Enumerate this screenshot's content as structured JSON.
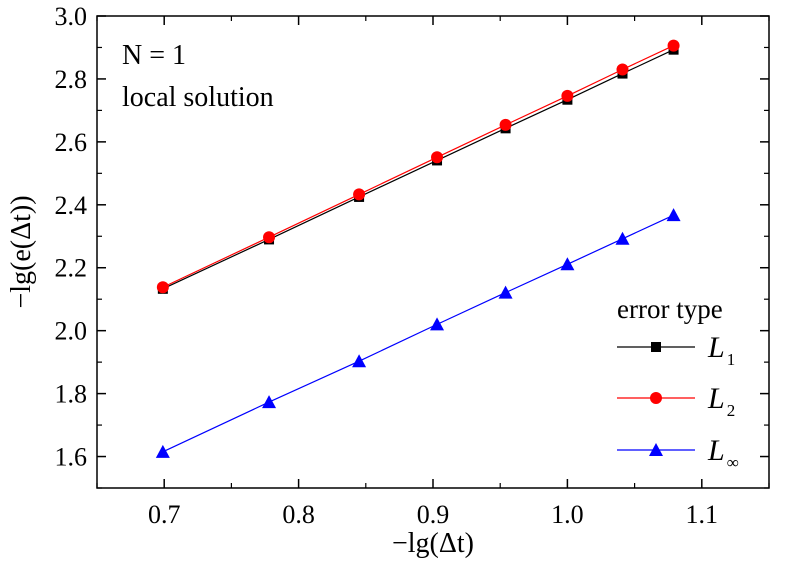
{
  "chart_data": {
    "type": "line",
    "xlabel": "−lg(Δt)",
    "ylabel": "−lg(e(Δt))",
    "xlim": [
      0.65,
      1.15
    ],
    "ylim": [
      1.5,
      3.0
    ],
    "xticks": [
      0.7,
      0.8,
      0.9,
      1.0,
      1.1
    ],
    "yticks": [
      1.6,
      1.8,
      2.0,
      2.2,
      2.4,
      2.6,
      2.8,
      3.0
    ],
    "xtick_labels": [
      "0.7",
      "0.8",
      "0.9",
      "1.0",
      "1.1"
    ],
    "ytick_labels": [
      "1.6",
      "1.8",
      "2.0",
      "2.2",
      "2.4",
      "2.6",
      "2.8",
      "3.0"
    ],
    "grid": false,
    "annotations": [
      "N = 1",
      "local solution"
    ],
    "legend": {
      "title": "error type",
      "placement": "bottom-right"
    },
    "x": [
      0.699,
      0.778,
      0.845,
      0.903,
      0.954,
      1.0,
      1.041,
      1.079
    ],
    "series": [
      {
        "name": "L1",
        "label_main": "L",
        "label_sub": "1",
        "color": "#000000",
        "marker": "square",
        "values": [
          2.133,
          2.29,
          2.425,
          2.541,
          2.643,
          2.734,
          2.817,
          2.893
        ]
      },
      {
        "name": "L2",
        "label_main": "L",
        "label_sub": "2",
        "color": "#ff0000",
        "marker": "circle",
        "values": [
          2.138,
          2.297,
          2.433,
          2.551,
          2.654,
          2.746,
          2.83,
          2.906
        ]
      },
      {
        "name": "L∞",
        "label_main": "L",
        "label_sub": "∞",
        "color": "#0000ff",
        "marker": "triangle",
        "values": [
          1.615,
          1.773,
          1.903,
          2.02,
          2.121,
          2.211,
          2.292,
          2.367
        ]
      }
    ]
  }
}
